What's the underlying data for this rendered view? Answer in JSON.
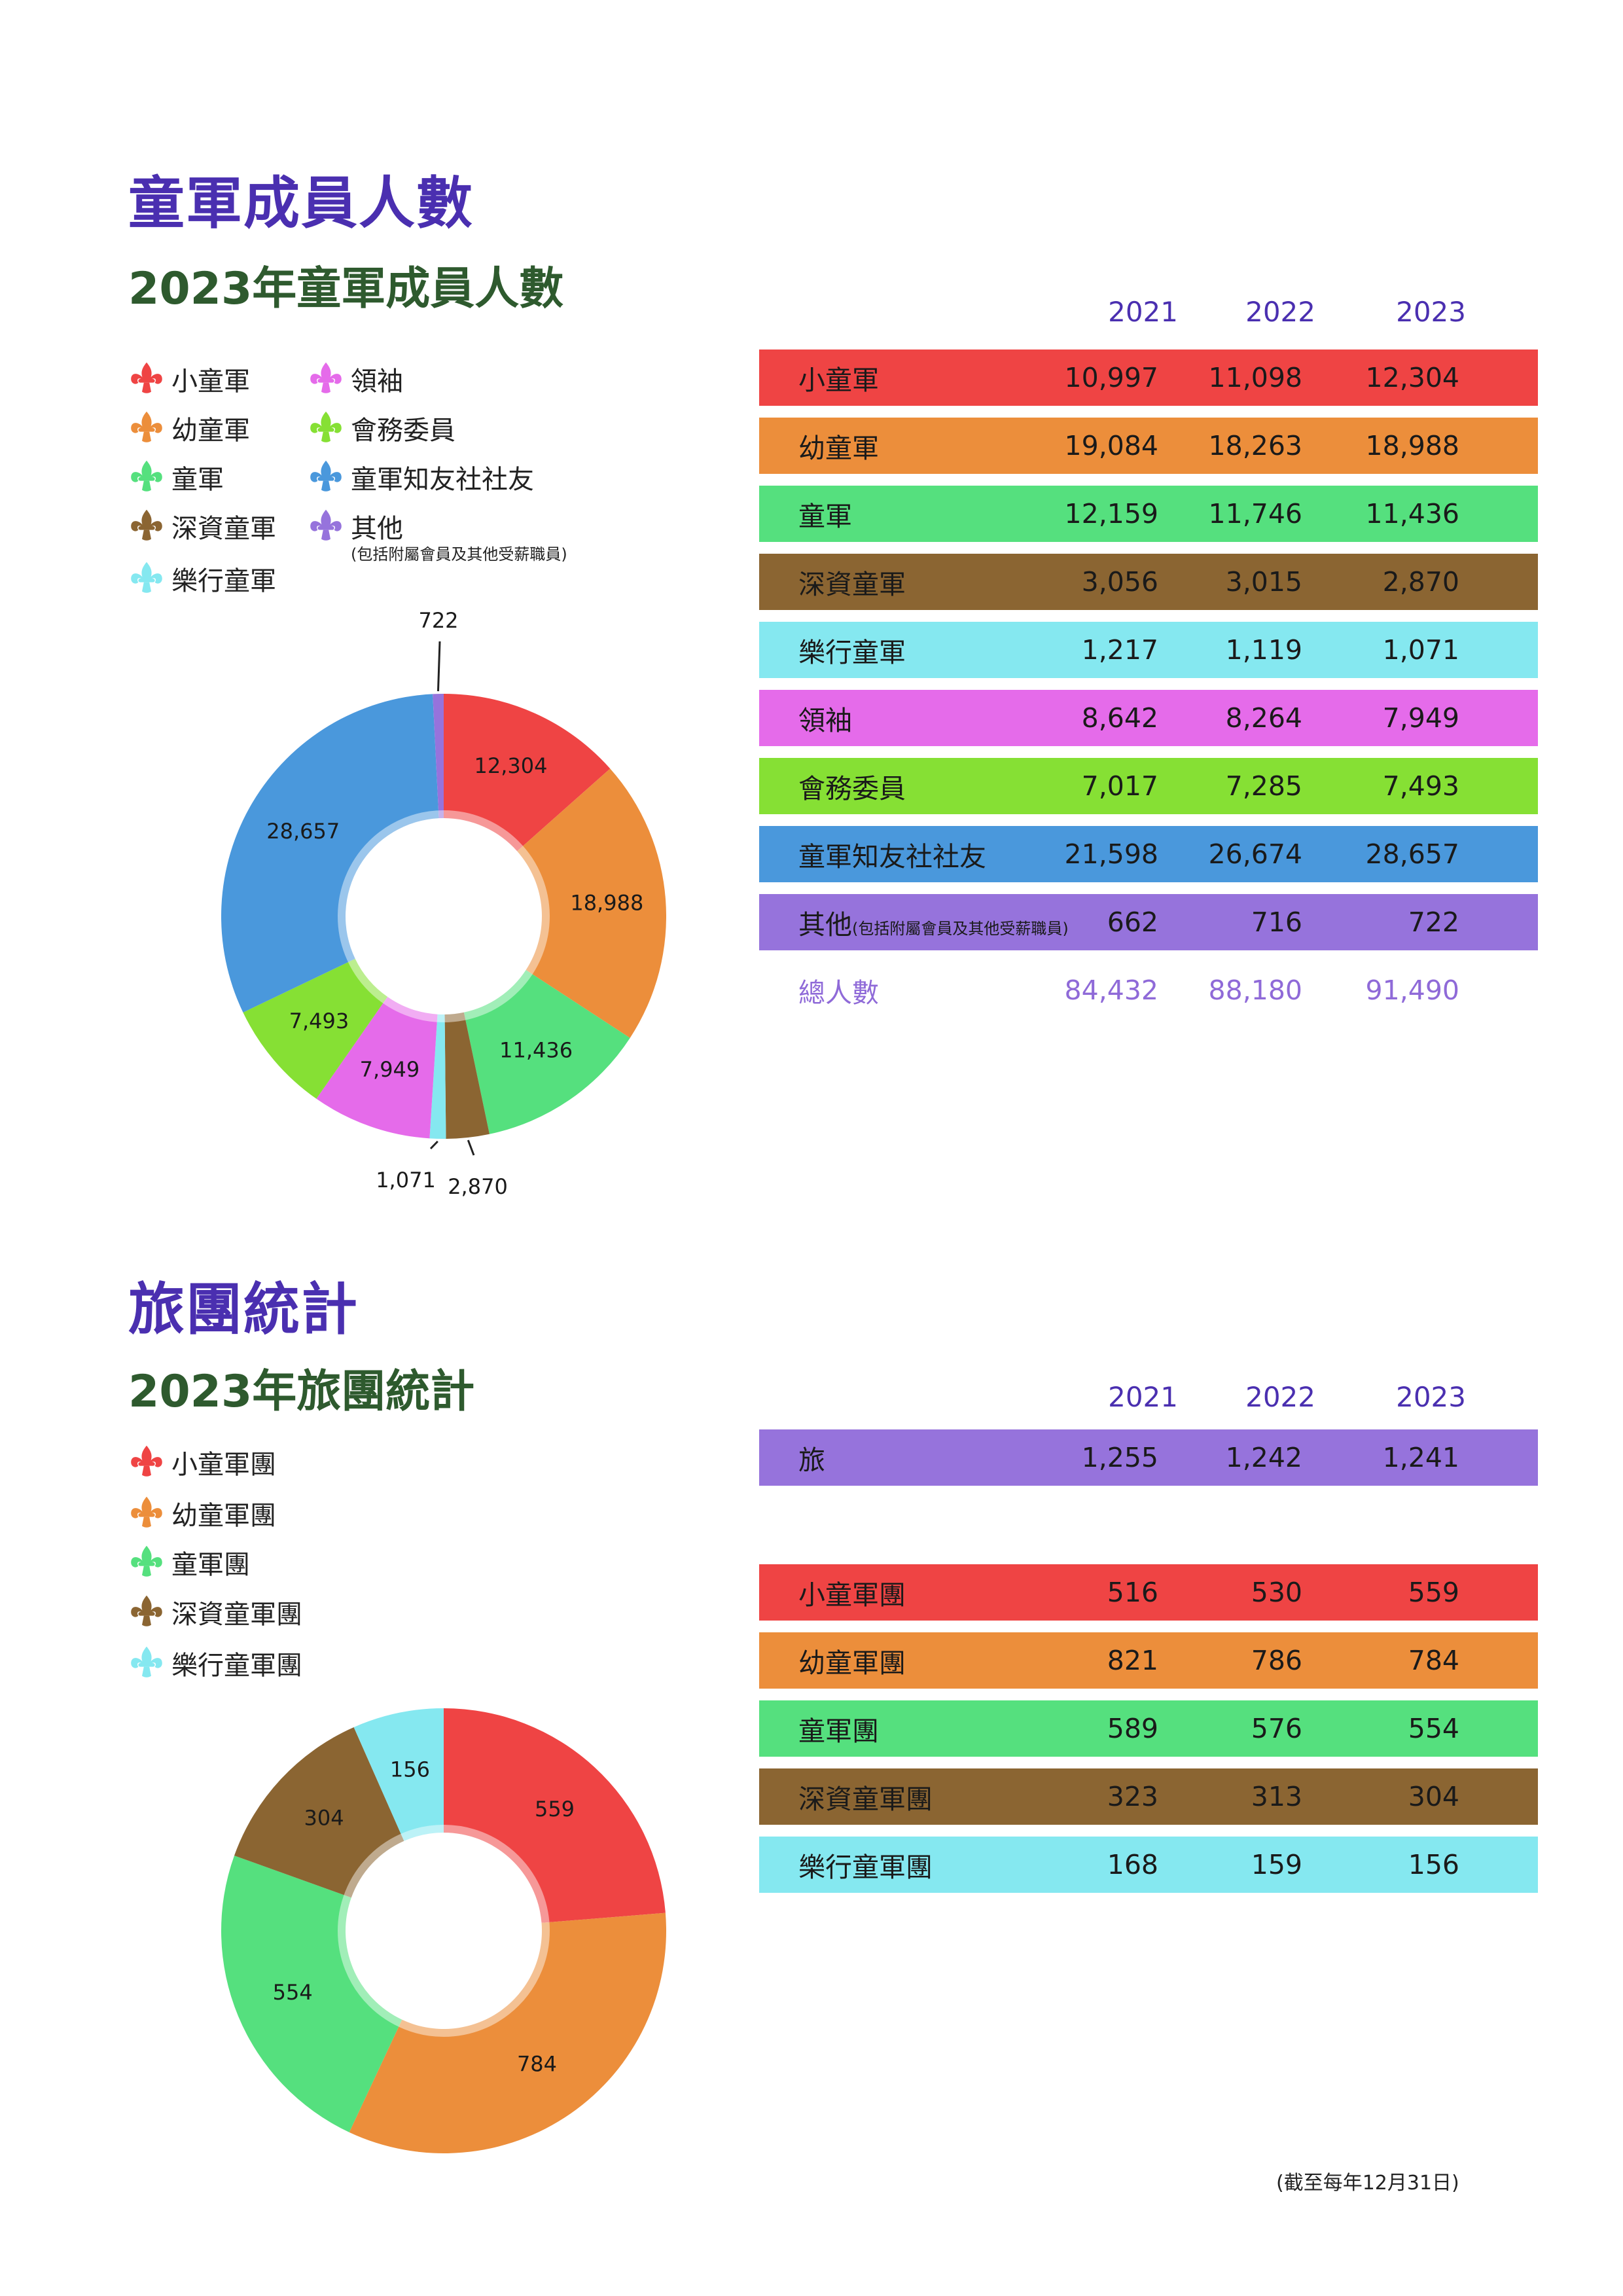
{
  "section1": {
    "title": "童軍成員人數",
    "subtitle": "2023年童軍成員人數",
    "years": [
      "2021",
      "2022",
      "2023"
    ],
    "legend": [
      {
        "label": "小童軍",
        "color": "#ef4444",
        "icon": "fleur-de-lis-icon"
      },
      {
        "label": "幼童軍",
        "color": "#ec8e3b",
        "icon": "fleur-de-lis-icon"
      },
      {
        "label": "童軍",
        "color": "#55e07e",
        "icon": "fleur-de-lis-icon"
      },
      {
        "label": "深資童軍",
        "color": "#8b6532",
        "icon": "fleur-de-lis-icon"
      },
      {
        "label": "樂行童軍",
        "color": "#85e8f0",
        "icon": "fleur-de-lis-icon"
      },
      {
        "label": "領袖",
        "color": "#e56bea",
        "icon": "fleur-de-lis-icon"
      },
      {
        "label": "會務委員",
        "color": "#86e034",
        "icon": "fleur-de-lis-icon"
      },
      {
        "label": "童軍知友社社友",
        "color": "#4a98dc",
        "icon": "fleur-de-lis-icon"
      },
      {
        "label": "其他",
        "note": "(包括附屬會員及其他受薪職員)",
        "color": "#9673dc",
        "icon": "fleur-de-lis-icon"
      }
    ],
    "table": [
      {
        "label": "小童軍",
        "values": [
          "10,997",
          "11,098",
          "12,304"
        ],
        "color": "#ef4444"
      },
      {
        "label": "幼童軍",
        "values": [
          "19,084",
          "18,263",
          "18,988"
        ],
        "color": "#ec8e3b"
      },
      {
        "label": "童軍",
        "values": [
          "12,159",
          "11,746",
          "11,436"
        ],
        "color": "#55e07e"
      },
      {
        "label": "深資童軍",
        "values": [
          "3,056",
          "3,015",
          "2,870"
        ],
        "color": "#8b6532"
      },
      {
        "label": "樂行童軍",
        "values": [
          "1,217",
          "1,119",
          "1,071"
        ],
        "color": "#85e8f0"
      },
      {
        "label": "領袖",
        "values": [
          "8,642",
          "8,264",
          "7,949"
        ],
        "color": "#e56bea"
      },
      {
        "label": "會務委員",
        "values": [
          "7,017",
          "7,285",
          "7,493"
        ],
        "color": "#86e034"
      },
      {
        "label": "童軍知友社社友",
        "values": [
          "21,598",
          "26,674",
          "28,657"
        ],
        "color": "#4a98dc"
      },
      {
        "label": "其他",
        "note": "(包括附屬會員及其他受薪職員)",
        "values": [
          "662",
          "716",
          "722"
        ],
        "color": "#9673dc"
      }
    ],
    "total": {
      "label": "總人數",
      "values": [
        "84,432",
        "88,180",
        "91,490"
      ]
    }
  },
  "section2": {
    "title": "旅團統計",
    "subtitle": "2023年旅團統計",
    "years": [
      "2021",
      "2022",
      "2023"
    ],
    "legend": [
      {
        "label": "小童軍團",
        "color": "#ef4444",
        "icon": "fleur-de-lis-icon"
      },
      {
        "label": "幼童軍團",
        "color": "#ec8e3b",
        "icon": "fleur-de-lis-icon"
      },
      {
        "label": "童軍團",
        "color": "#55e07e",
        "icon": "fleur-de-lis-icon"
      },
      {
        "label": "深資童軍團",
        "color": "#8b6532",
        "icon": "fleur-de-lis-icon"
      },
      {
        "label": "樂行童軍團",
        "color": "#85e8f0",
        "icon": "fleur-de-lis-icon"
      }
    ],
    "group_row": {
      "label": "旅",
      "values": [
        "1,255",
        "1,242",
        "1,241"
      ],
      "color": "#9673dc"
    },
    "table": [
      {
        "label": "小童軍團",
        "values": [
          "516",
          "530",
          "559"
        ],
        "color": "#ef4444"
      },
      {
        "label": "幼童軍團",
        "values": [
          "821",
          "786",
          "784"
        ],
        "color": "#ec8e3b"
      },
      {
        "label": "童軍團",
        "values": [
          "589",
          "576",
          "554"
        ],
        "color": "#55e07e"
      },
      {
        "label": "深資童軍團",
        "values": [
          "323",
          "313",
          "304"
        ],
        "color": "#8b6532"
      },
      {
        "label": "樂行童軍團",
        "values": [
          "168",
          "159",
          "156"
        ],
        "color": "#85e8f0"
      }
    ]
  },
  "footnote": "(截至每年12月31日)",
  "chart_data": [
    {
      "type": "pie",
      "categories": [
        "小童軍",
        "幼童軍",
        "童軍",
        "深資童軍",
        "樂行童軍",
        "領袖",
        "會務委員",
        "童軍知友社社友",
        "其他"
      ],
      "values": [
        12304,
        18988,
        11436,
        2870,
        1071,
        7949,
        7493,
        28657,
        722
      ],
      "labels": [
        "12,304",
        "18,988",
        "11,436",
        "2,870",
        "1,071",
        "7,949",
        "7,493",
        "28,657",
        "722"
      ],
      "colors": [
        "#ef4444",
        "#ec8e3b",
        "#55e07e",
        "#8b6532",
        "#85e8f0",
        "#e56bea",
        "#86e034",
        "#4a98dc",
        "#9673dc"
      ],
      "title": "2023年童軍成員人數"
    },
    {
      "type": "pie",
      "categories": [
        "小童軍團",
        "幼童軍團",
        "童軍團",
        "深資童軍團",
        "樂行童軍團"
      ],
      "values": [
        559,
        784,
        554,
        304,
        156
      ],
      "labels": [
        "559",
        "784",
        "554",
        "304",
        "156"
      ],
      "colors": [
        "#ef4444",
        "#ec8e3b",
        "#55e07e",
        "#8b6532",
        "#85e8f0"
      ],
      "title": "2023年旅團統計"
    }
  ]
}
